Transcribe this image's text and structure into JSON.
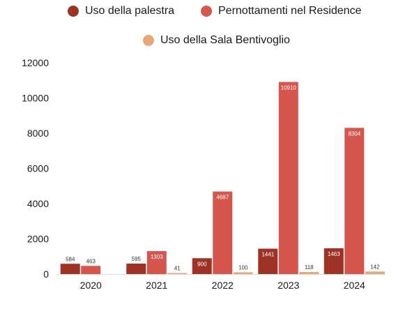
{
  "chart_data": {
    "type": "bar",
    "title": "",
    "xlabel": "",
    "ylabel": "",
    "categories": [
      "2020",
      "2021",
      "2022",
      "2023",
      "2024"
    ],
    "series": [
      {
        "name": "Uso della palestra",
        "color": "#9e3325",
        "values": [
          584,
          595,
          900,
          1441,
          1463
        ]
      },
      {
        "name": "Pernottamenti nel Residence",
        "color": "#d4564d",
        "values": [
          463,
          1303,
          4687,
          10910,
          8304
        ]
      },
      {
        "name": "Uso della Sala Bentivoglio",
        "color": "#e8a779",
        "values": [
          null,
          41,
          100,
          118,
          142
        ]
      }
    ],
    "ylim": [
      0,
      12000
    ],
    "yticks": [
      "0",
      "2000",
      "4000",
      "6000",
      "8000",
      "10000",
      "12000"
    ],
    "grid": false,
    "legend_position": "top"
  }
}
